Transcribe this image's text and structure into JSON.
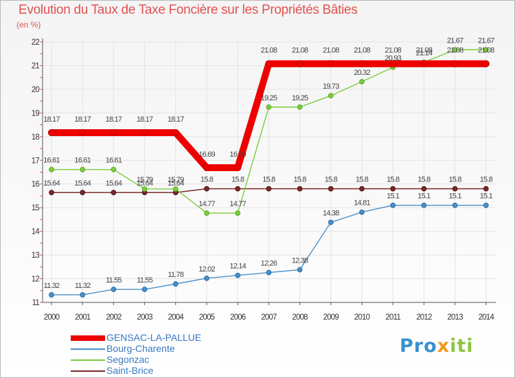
{
  "title": "Evolution du Taux de Taxe Foncière sur les Propriétés Bâties",
  "unit": "(en %)",
  "logo": {
    "part1": "Pro",
    "part2": "x",
    "part3": "iti"
  },
  "colors": {
    "red": "#ee0000",
    "blue": "#4a90c8",
    "green": "#7ccc3c",
    "brown": "#7a2a2a"
  },
  "chart_data": {
    "type": "line",
    "title": "Evolution du Taux de Taxe Foncière sur les Propriétés Bâties",
    "ylabel": "(en %)",
    "xlabel": "",
    "ylim": [
      11,
      22
    ],
    "yticks": [
      11,
      12,
      13,
      14,
      15,
      16,
      17,
      18,
      19,
      20,
      21,
      22
    ],
    "categories": [
      "2000",
      "2001",
      "2002",
      "2003",
      "2004",
      "2005",
      "2006",
      "2007",
      "2008",
      "2009",
      "2010",
      "2011",
      "2012",
      "2013",
      "2014"
    ],
    "series": [
      {
        "name": "GENSAC-LA-PALLUE",
        "color": "#ee0000",
        "values": [
          18.17,
          18.17,
          18.17,
          18.17,
          18.17,
          16.69,
          16.69,
          21.08,
          21.08,
          21.08,
          21.08,
          21.08,
          21.08,
          21.08,
          21.08
        ],
        "labels": [
          "18.17",
          "18.17",
          "18.17",
          "18.17",
          "18.17",
          "16.69",
          "16.69",
          "21.08",
          "21.08",
          "21.08",
          "21.08",
          "21.08",
          "21.08",
          "21.08",
          "21.08"
        ]
      },
      {
        "name": "Bourg-Charente",
        "color": "#4a90c8",
        "values": [
          11.32,
          11.32,
          11.55,
          11.55,
          11.78,
          12.02,
          12.14,
          12.26,
          12.38,
          14.38,
          14.81,
          15.1,
          15.1,
          15.1,
          15.1
        ],
        "labels": [
          "11.32",
          "11.32",
          "11.55",
          "11.55",
          "11.78",
          "12.02",
          "12.14",
          "12.26",
          "12.38",
          "14.38",
          "14.81",
          "15.1",
          "15.1",
          "15.1",
          "15.1"
        ]
      },
      {
        "name": "Segonzac",
        "color": "#7ccc3c",
        "values": [
          16.61,
          16.61,
          16.61,
          15.79,
          15.79,
          14.77,
          14.77,
          19.25,
          19.25,
          19.73,
          20.32,
          20.93,
          21.14,
          21.67,
          21.67
        ],
        "labels": [
          "16.61",
          "16.61",
          "16.61",
          "15.79",
          "15.79",
          "14.77",
          "14.77",
          "19.25",
          "19.25",
          "19.73",
          "20.32",
          "20.93",
          "21.14",
          "21.67",
          "21.67"
        ]
      },
      {
        "name": "Saint-Brice",
        "color": "#7a2a2a",
        "values": [
          15.64,
          15.64,
          15.64,
          15.64,
          15.64,
          15.8,
          15.8,
          15.8,
          15.8,
          15.8,
          15.8,
          15.8,
          15.8,
          15.8,
          15.8
        ],
        "labels": [
          "15.64",
          "15.64",
          "15.64",
          "15.64",
          "15.64",
          "15.8",
          "15.8",
          "15.8",
          "15.8",
          "15.8",
          "15.8",
          "15.8",
          "15.8",
          "15.8",
          "15.8"
        ]
      }
    ]
  },
  "legend": [
    {
      "label": "GENSAC-LA-PALLUE"
    },
    {
      "label": "Bourg-Charente"
    },
    {
      "label": "Segonzac"
    },
    {
      "label": "Saint-Brice"
    }
  ]
}
